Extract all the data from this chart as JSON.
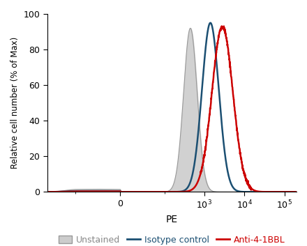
{
  "title": "",
  "xlabel": "PE",
  "ylabel": "Relative cell number (% of Max)",
  "ylim": [
    0,
    100
  ],
  "xlim_min": -500,
  "xlim_max": 200000,
  "linthresh": 100,
  "background_color": "#ffffff",
  "legend_labels": [
    "Unstained",
    "Isotype control",
    "Anti-4-1BBL"
  ],
  "unstained_fill": "#cccccc",
  "unstained_edge": "#999999",
  "isotype_color": "#1b4f72",
  "anti_color": "#cc0000",
  "legend_text_colors": [
    "#888888",
    "#1b4f72",
    "#cc0000"
  ],
  "unstained_peak_log": 2.65,
  "unstained_sigma": 0.17,
  "unstained_height": 92,
  "isotype_peak_log": 3.15,
  "isotype_sigma": 0.21,
  "isotype_height": 95,
  "anti_peak_log": 3.45,
  "anti_sigma": 0.26,
  "anti_height": 93
}
